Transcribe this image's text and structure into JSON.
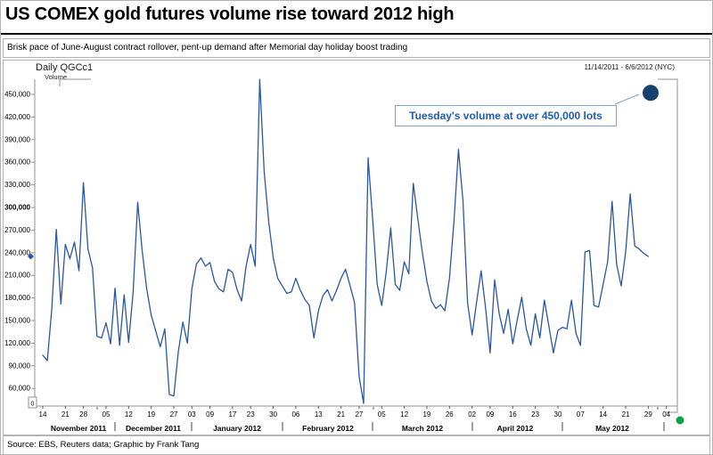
{
  "header": {
    "title": "US COMEX gold futures volume rise toward 2012 high",
    "subtitle": "Brisk pace of June-August contract rollover, pent-up demand after Memorial day holiday boost trading"
  },
  "chart": {
    "instrument": "Daily QGCc1",
    "axis_label": "Volume",
    "date_range": "11/14/2011 - 6/6/2012 (NYC)",
    "annotation": "Tuesday's volume at over 450,000 lots",
    "corner_icon": "0"
  },
  "source": "Source: EBS, Reuters data; Graphic by Frank Tang",
  "colors": {
    "line": "#2a57a5",
    "highlight_dot": "#173f70",
    "annotation_text": "#1f5cad",
    "annotation_border": "#7da3d4",
    "live_dot_green": "#0aa14a",
    "axis_gray": "#909090",
    "text": "#000000"
  },
  "chart_data": {
    "type": "line",
    "title": "US COMEX gold futures volume rise toward 2012 high",
    "xlabel": "",
    "ylabel": "Volume",
    "ylim": [
      30000,
      480000
    ],
    "grid": false,
    "legend": "none",
    "y_ticks": [
      450000,
      420000,
      390000,
      360000,
      330000,
      300000,
      270000,
      240000,
      210000,
      180000,
      150000,
      120000,
      90000,
      60000
    ],
    "y_tick_bold": 300000,
    "x_ticks": [
      {
        "label": "14",
        "i": 0
      },
      {
        "label": "21",
        "i": 5
      },
      {
        "label": "28",
        "i": 9
      },
      {
        "label": "05",
        "i": 14
      },
      {
        "label": "12",
        "i": 19
      },
      {
        "label": "19",
        "i": 24
      },
      {
        "label": "27",
        "i": 29
      },
      {
        "label": "03",
        "i": 33
      },
      {
        "label": "09",
        "i": 37
      },
      {
        "label": "17",
        "i": 42
      },
      {
        "label": "23",
        "i": 46
      },
      {
        "label": "30",
        "i": 51
      },
      {
        "label": "06",
        "i": 56
      },
      {
        "label": "13",
        "i": 61
      },
      {
        "label": "21",
        "i": 66
      },
      {
        "label": "27",
        "i": 70
      },
      {
        "label": "05",
        "i": 75
      },
      {
        "label": "12",
        "i": 80
      },
      {
        "label": "19",
        "i": 85
      },
      {
        "label": "26",
        "i": 90
      },
      {
        "label": "02",
        "i": 95
      },
      {
        "label": "09",
        "i": 99
      },
      {
        "label": "16",
        "i": 104
      },
      {
        "label": "23",
        "i": 109
      },
      {
        "label": "30",
        "i": 114
      },
      {
        "label": "07",
        "i": 119
      },
      {
        "label": "14",
        "i": 124
      },
      {
        "label": "21",
        "i": 129
      },
      {
        "label": "29",
        "i": 134
      },
      {
        "label": "04",
        "i": 138
      }
    ],
    "month_labels": [
      "November 2011",
      "December 2011",
      "January 2012",
      "February 2012",
      "March 2012",
      "April 2012",
      "May 2012"
    ],
    "dates": [
      "11/14",
      "11/15",
      "11/16",
      "11/17",
      "11/18",
      "11/21",
      "11/22",
      "11/23",
      "11/25",
      "11/28",
      "11/29",
      "11/30",
      "12/1",
      "12/2",
      "12/5",
      "12/6",
      "12/7",
      "12/8",
      "12/9",
      "12/12",
      "12/13",
      "12/14",
      "12/15",
      "12/16",
      "12/19",
      "12/20",
      "12/21",
      "12/22",
      "12/23",
      "12/27",
      "12/28",
      "12/29",
      "12/30",
      "1/3",
      "1/4",
      "1/5",
      "1/6",
      "1/9",
      "1/10",
      "1/11",
      "1/12",
      "1/13",
      "1/17",
      "1/18",
      "1/19",
      "1/20",
      "1/23",
      "1/24",
      "1/25",
      "1/26",
      "1/27",
      "1/30",
      "1/31",
      "2/1",
      "2/2",
      "2/3",
      "2/6",
      "2/7",
      "2/8",
      "2/9",
      "2/10",
      "2/13",
      "2/14",
      "2/15",
      "2/16",
      "2/17",
      "2/21",
      "2/22",
      "2/23",
      "2/24",
      "2/27",
      "2/28",
      "2/29",
      "3/1",
      "3/2",
      "3/5",
      "3/6",
      "3/7",
      "3/8",
      "3/9",
      "3/12",
      "3/13",
      "3/14",
      "3/15",
      "3/16",
      "3/19",
      "3/20",
      "3/21",
      "3/22",
      "3/23",
      "3/26",
      "3/27",
      "3/28",
      "3/29",
      "3/30",
      "4/2",
      "4/3",
      "4/4",
      "4/5",
      "4/9",
      "4/10",
      "4/11",
      "4/12",
      "4/13",
      "4/16",
      "4/17",
      "4/18",
      "4/19",
      "4/20",
      "4/23",
      "4/24",
      "4/25",
      "4/26",
      "4/27",
      "4/30",
      "5/1",
      "5/2",
      "5/3",
      "5/4",
      "5/7",
      "5/8",
      "5/9",
      "5/10",
      "5/11",
      "5/14",
      "5/15",
      "5/16",
      "5/17",
      "5/18",
      "5/21",
      "5/22",
      "5/23",
      "5/24",
      "5/25",
      "5/29"
    ],
    "values": [
      104000,
      97000,
      165000,
      271000,
      172000,
      251000,
      232000,
      254000,
      216000,
      333000,
      245000,
      220000,
      129000,
      127000,
      147000,
      119000,
      193000,
      117000,
      184000,
      121000,
      188000,
      307000,
      243000,
      192000,
      157000,
      136000,
      115000,
      139000,
      52000,
      50000,
      109000,
      148000,
      120000,
      192000,
      225000,
      233000,
      222000,
      227000,
      202000,
      192000,
      188000,
      218000,
      214000,
      191000,
      176000,
      222000,
      251000,
      222000,
      470000,
      348000,
      281000,
      233000,
      206000,
      196000,
      186000,
      188000,
      206000,
      190000,
      178000,
      170000,
      127000,
      163000,
      183000,
      191000,
      176000,
      190000,
      206000,
      218000,
      196000,
      174000,
      76000,
      40000,
      366000,
      285000,
      198000,
      170000,
      214000,
      273000,
      198000,
      190000,
      228000,
      212000,
      332000,
      285000,
      240000,
      202000,
      176000,
      166000,
      171000,
      163000,
      206000,
      282000,
      377000,
      308000,
      174000,
      131000,
      174000,
      216000,
      166000,
      107000,
      204000,
      159000,
      133000,
      165000,
      119000,
      151000,
      181000,
      139000,
      117000,
      159000,
      127000,
      177000,
      143000,
      107000,
      137000,
      141000,
      139000,
      177000,
      133000,
      117000,
      241000,
      243000,
      170000,
      168000,
      198000,
      228000,
      308000,
      224000,
      196000,
      241000,
      318000,
      249000,
      245000,
      239000,
      235000
    ],
    "highlight_point": {
      "date": "6/5",
      "label": "Tuesday",
      "value": 452000
    },
    "last_value_axis_marker": 235000
  }
}
